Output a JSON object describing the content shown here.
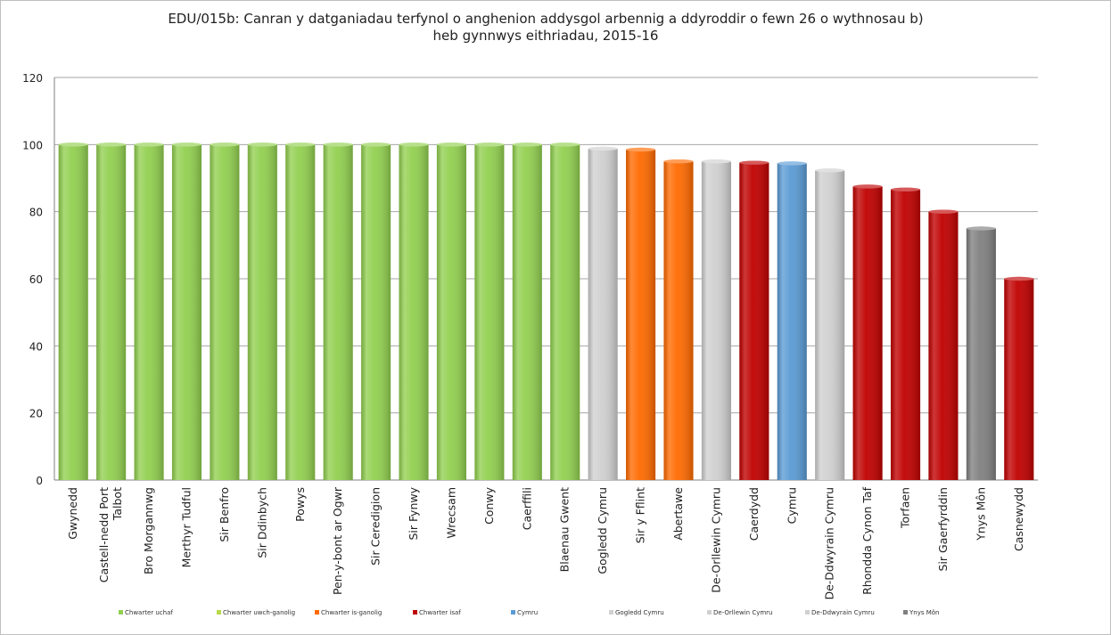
{
  "chart_data": {
    "type": "bar",
    "title": "EDU/015b: Canran y datganiadau terfynol o anghenion addysgol arbennig a ddyroddir o fewn 26 o wythnosau b) heb gynnwys eithriadau, 2015-16",
    "title_lines": [
      "EDU/015b: Canran y datganiadau terfynol o anghenion addysgol arbennig a ddyroddir o fewn 26 o wythnosau b)",
      "heb gynnwys eithriadau, 2015-16"
    ],
    "xlabel": "",
    "ylabel": "",
    "ylim": [
      0,
      120
    ],
    "yticks": [
      0,
      20,
      40,
      60,
      80,
      100,
      120
    ],
    "grid": true,
    "legend_position": "bottom",
    "categories": [
      "Gwynedd",
      "Castell-nedd Port Talbot",
      "Bro Morgannwg",
      "Merthyr Tudful",
      "Sir Benfro",
      "Sir Ddinbych",
      "Powys",
      "Pen-y-bont ar Ogwr",
      "Sir Ceredigion",
      "Sir Fynwy",
      "Wrecsam",
      "Conwy",
      "Caerffili",
      "Blaenau Gwent",
      "Gogledd Cymru",
      "Sir y Fflint",
      "Abertawe",
      "De-Orllewin Cymru",
      "Caerdydd",
      "Cymru",
      "De-Ddwyrain Cymru",
      "Rhondda Cynon Taf",
      "Torfaen",
      "Sir Gaerfyrddin",
      "Ynys Môn",
      "Casnewydd"
    ],
    "category_label_lines": [
      [
        "Gwynedd"
      ],
      [
        "Castell-nedd Port",
        "Talbot"
      ],
      [
        "Bro Morgannwg"
      ],
      [
        "Merthyr Tudful"
      ],
      [
        "Sir Benfro"
      ],
      [
        "Sir Ddinbych"
      ],
      [
        "Powys"
      ],
      [
        "Pen-y-bont ar Ogwr"
      ],
      [
        "Sir Ceredigion"
      ],
      [
        "Sir Fynwy"
      ],
      [
        "Wrecsam"
      ],
      [
        "Conwy"
      ],
      [
        "Caerffili"
      ],
      [
        "Blaenau Gwent"
      ],
      [
        "Gogledd Cymru"
      ],
      [
        "Sir y Fflint"
      ],
      [
        "Abertawe"
      ],
      [
        "De-Orllewin Cymru"
      ],
      [
        "Caerdydd"
      ],
      [
        "Cymru"
      ],
      [
        "De-Ddwyrain Cymru"
      ],
      [
        "Rhondda Cynon Taf"
      ],
      [
        "Torfaen"
      ],
      [
        "Sir Gaerfyrddin"
      ],
      [
        "Ynys Môn"
      ],
      [
        "Casnewydd"
      ]
    ],
    "values": [
      100,
      100,
      100,
      100,
      100,
      100,
      100,
      100,
      100,
      100,
      100,
      100,
      100,
      100,
      98.8,
      98.5,
      95,
      95,
      94.6,
      94.4,
      92.3,
      87.5,
      86.6,
      80,
      75,
      60
    ],
    "bar_groups": [
      "Q1",
      "Q1",
      "Q1",
      "Q1",
      "Q1",
      "Q1",
      "Q1",
      "Q1",
      "Q1",
      "Q1",
      "Q1",
      "Q1",
      "Q1",
      "Q1",
      "NW",
      "Q3",
      "Q3",
      "SW",
      "Q4",
      "W",
      "SE",
      "Q4",
      "Q4",
      "Q4",
      "YM",
      "Q4"
    ],
    "legend": [
      {
        "key": "Q1",
        "label": "Chwarter uchaf",
        "color": "#92d050"
      },
      {
        "key": "Q2",
        "label": "Chwarter uwch-ganolig",
        "color": "#b8d94a"
      },
      {
        "key": "Q3",
        "label": "Chwarter is-ganolig",
        "color": "#ff6a00"
      },
      {
        "key": "Q4",
        "label": "Chwarter isaf",
        "color": "#c00000"
      },
      {
        "key": "W",
        "label": "Cymru",
        "color": "#5b9bd5"
      },
      {
        "key": "NW",
        "label": "Gogledd Cymru",
        "color": "#d0d0d0"
      },
      {
        "key": "SW",
        "label": "De-Orllewin Cymru",
        "color": "#d0d0d0"
      },
      {
        "key": "SE",
        "label": "De-Ddwyrain Cymru",
        "color": "#d0d0d0"
      },
      {
        "key": "YM",
        "label": "Ynys Môn",
        "color": "#808080"
      }
    ]
  }
}
